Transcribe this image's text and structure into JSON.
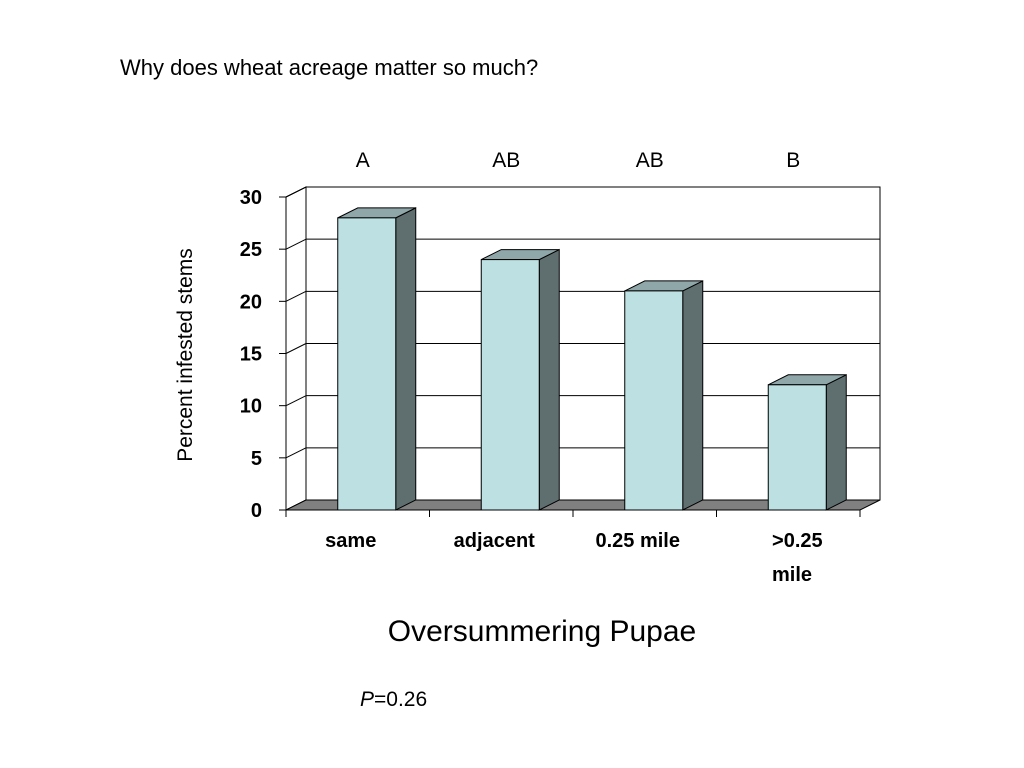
{
  "slide": {
    "question": "Why does wheat acreage matter so much?",
    "p_label": "P",
    "p_value_text": "=0.26"
  },
  "chart_data": {
    "type": "bar",
    "style": "3d-column",
    "categories": [
      "same",
      "adjacent",
      "0.25 mile",
      ">0.25 mile"
    ],
    "category_lines": [
      [
        "same"
      ],
      [
        "adjacent"
      ],
      [
        "0.25 mile"
      ],
      [
        ">0.25",
        "mile"
      ]
    ],
    "values": [
      28,
      24,
      21,
      12
    ],
    "significance_letters": [
      "A",
      "AB",
      "AB",
      "B"
    ],
    "ylabel": "Percent infested stems",
    "xlabel": "Oversummering Pupae",
    "ylim": [
      0,
      30
    ],
    "yticks": [
      0,
      5,
      10,
      15,
      20,
      25,
      30
    ],
    "grid": true,
    "legend": "none",
    "colors": {
      "bar_front": "#bde0e3",
      "bar_side": "#5f6f70",
      "bar_top": "#8fa7a9",
      "floor": "#808080",
      "outline": "#000000"
    }
  }
}
